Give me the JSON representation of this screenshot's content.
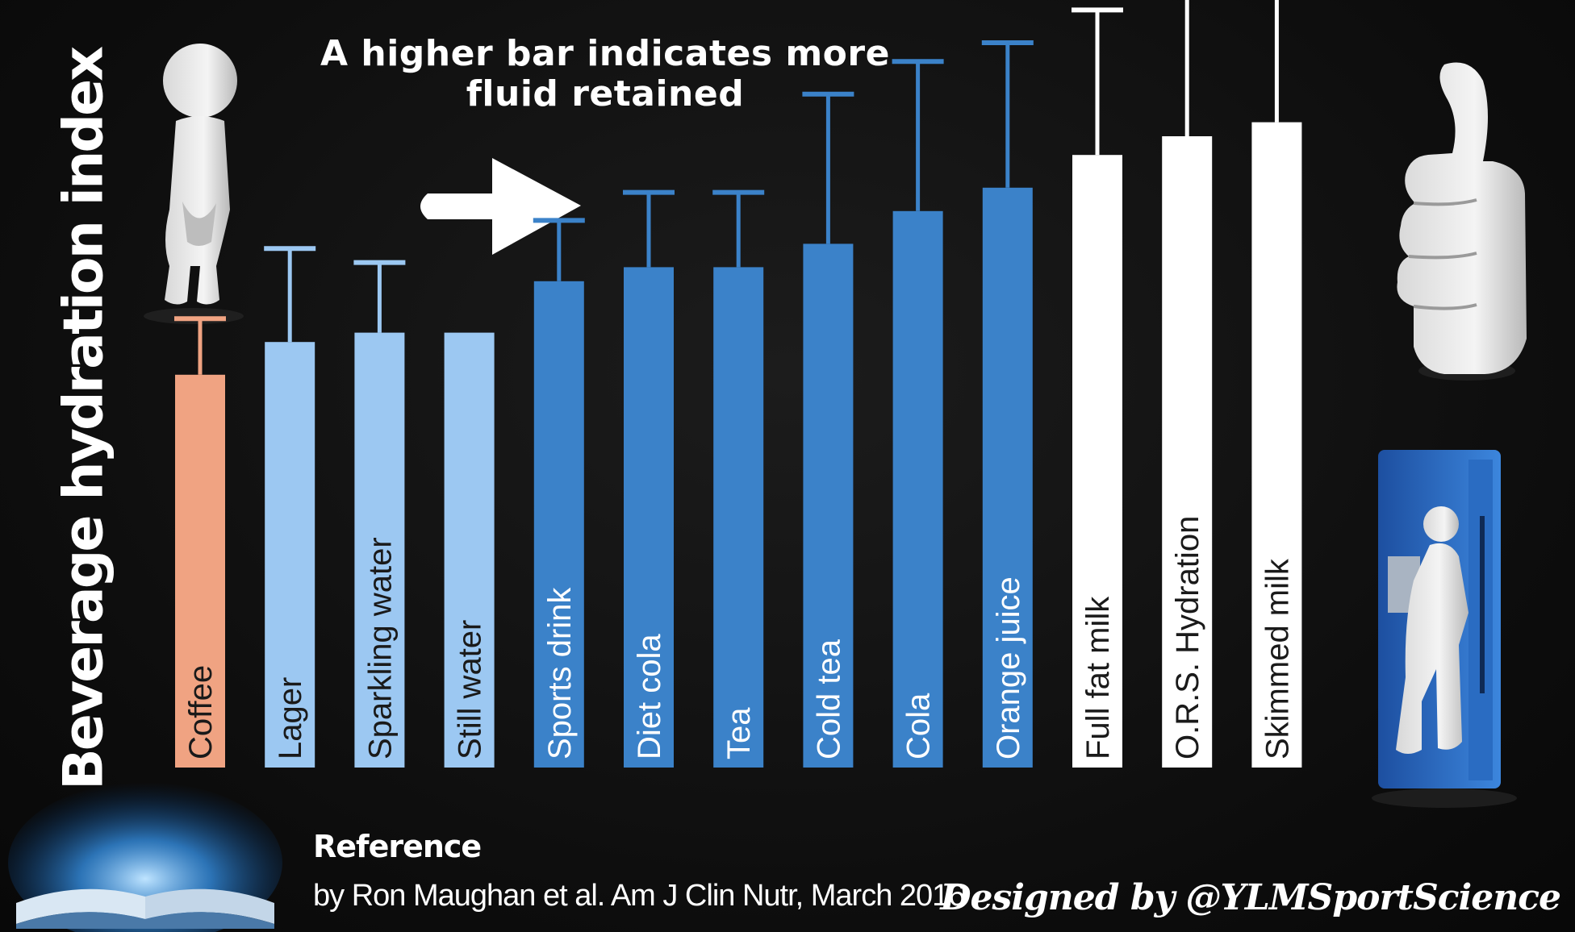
{
  "chart_data": {
    "type": "bar",
    "title": "A higher bar indicates more fluid retained",
    "ylabel": "Beverage hydration index",
    "xlabel": "",
    "ylim": [
      0,
      1.6
    ],
    "categories": [
      "Coffee",
      "Lager",
      "Sparkling water",
      "Still water",
      "Sports drink",
      "Diet cola",
      "Tea",
      "Cold tea",
      "Cola",
      "Orange juice",
      "Full fat milk",
      "O.R.S. Hydration",
      "Skimmed milk"
    ],
    "values": [
      0.84,
      0.91,
      0.93,
      0.93,
      1.04,
      1.07,
      1.07,
      1.12,
      1.19,
      1.24,
      1.31,
      1.35,
      1.38
    ],
    "error_upper": [
      0.96,
      1.11,
      1.08,
      null,
      1.17,
      1.23,
      1.23,
      1.44,
      1.51,
      1.55,
      1.62,
      1.69,
      1.65
    ],
    "bar_colors": [
      "#f0a382",
      "#9cc8f2",
      "#9cc8f2",
      "#9cc8f2",
      "#3b82c9",
      "#3b82c9",
      "#3b82c9",
      "#3b82c9",
      "#3b82c9",
      "#3b82c9",
      "#ffffff",
      "#ffffff",
      "#ffffff"
    ],
    "label_colors": [
      "#1a1a1a",
      "#1a1a1a",
      "#1a1a1a",
      "#1a1a1a",
      "#ffffff",
      "#ffffff",
      "#ffffff",
      "#ffffff",
      "#ffffff",
      "#ffffff",
      "#1a1a1a",
      "#1a1a1a",
      "#1a1a1a"
    ],
    "grid": false,
    "legend": "none"
  },
  "reference": {
    "heading": "Reference",
    "citation": "by Ron Maughan et al. Am J Clin Nutr, March 2016"
  },
  "credit": "Designed by @YLMSportScience",
  "icons": [
    "figure-waiting-icon",
    "arrow-right-icon",
    "thumbs-up-icon",
    "fridge-figure-icon",
    "open-book-icon"
  ],
  "colors": {
    "background": "#111111",
    "coffee": "#f0a382",
    "light_blue": "#9cc8f2",
    "blue": "#3b82c9",
    "milk": "#ffffff"
  }
}
